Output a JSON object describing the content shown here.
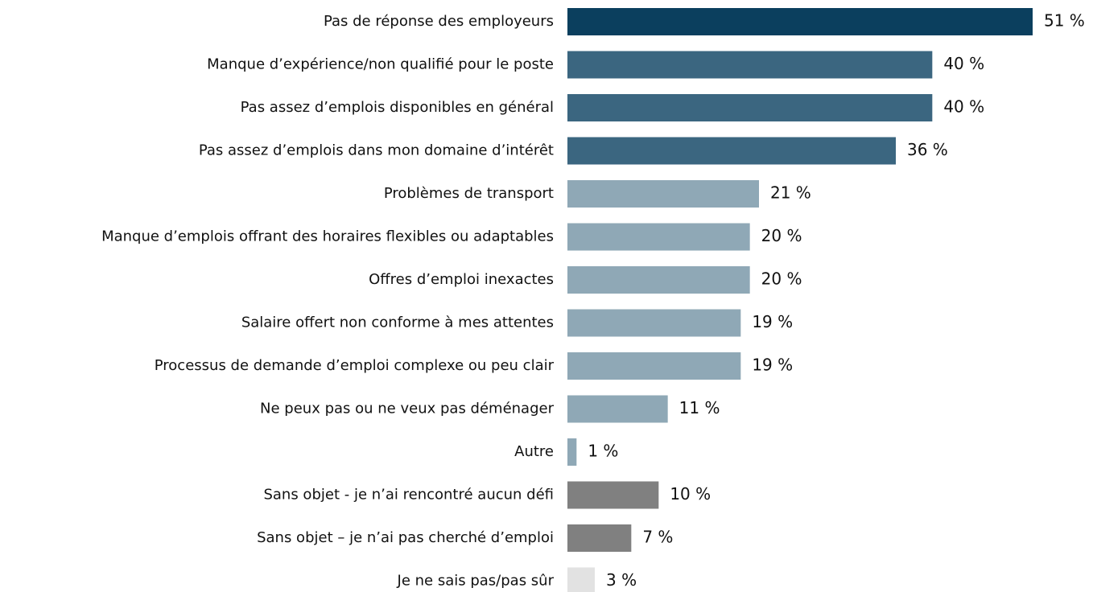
{
  "chart_data": {
    "type": "bar",
    "orientation": "horizontal",
    "categories": [
      "Pas de réponse des employeurs",
      "Manque d’expérience/non qualifié pour le poste",
      "Pas assez d’emplois disponibles en général",
      "Pas assez d’emplois dans mon domaine d’intérêt",
      "Problèmes de transport",
      "Manque d’emplois offrant des horaires flexibles ou adaptables",
      "Offres d’emploi inexactes",
      "Salaire offert non conforme à mes attentes",
      "Processus de demande d’emploi complexe ou peu clair",
      "Ne peux pas ou ne veux pas déménager",
      "Autre",
      "Sans objet - je n’ai rencontré aucun défi",
      "Sans objet – je n’ai pas cherché d’emploi",
      "Je ne sais pas/pas sûr"
    ],
    "values": [
      51,
      40,
      40,
      36,
      21,
      20,
      20,
      19,
      19,
      11,
      1,
      10,
      7,
      3
    ],
    "value_labels": [
      "51 %",
      "40 %",
      "40 %",
      "36 %",
      "21 %",
      "20 %",
      "20 %",
      "19 %",
      "19 %",
      "11 %",
      "1 %",
      "10 %",
      "7 %",
      "3 %"
    ],
    "colors": [
      "#0b3f5e",
      "#3b6680",
      "#3b6680",
      "#3b6680",
      "#8fa8b6",
      "#8fa8b6",
      "#8fa8b6",
      "#8fa8b6",
      "#8fa8b6",
      "#8fa8b6",
      "#8fa8b6",
      "#808080",
      "#808080",
      "#e2e2e2"
    ]
  }
}
